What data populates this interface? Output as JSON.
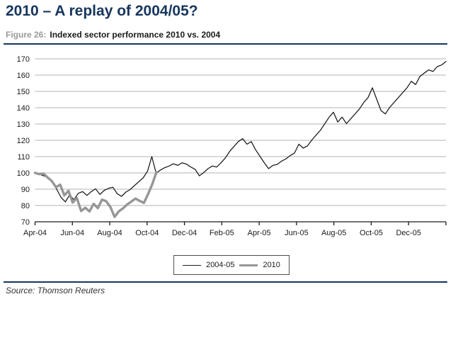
{
  "page": {
    "title": "2010 – A replay of 2004/05?",
    "accent_color": "#17365D"
  },
  "figure": {
    "label": "Figure 26:",
    "title": "Indexed sector performance 2010 vs. 2004"
  },
  "footer": {
    "source": "Source: Thomson Reuters"
  },
  "chart_data": {
    "type": "line",
    "title": "Indexed sector performance 2010 vs. 2004",
    "xlabel": "",
    "ylabel": "",
    "x_unit": "months since April of each series start year",
    "xlim": [
      0,
      22
    ],
    "ylim": [
      70,
      170
    ],
    "y_tick_step": 10,
    "y_tick_labels": [
      "70",
      "80",
      "90",
      "100",
      "110",
      "120",
      "130",
      "140",
      "150",
      "160",
      "170"
    ],
    "grid": "horizontal",
    "grid_color": "#b3b3b3",
    "axis_color": "#1a1a1a",
    "legend_position": "bottom-center",
    "x_ticks": [
      {
        "m": 0,
        "label": "Apr-04"
      },
      {
        "m": 2,
        "label": "Jun-04"
      },
      {
        "m": 4,
        "label": "Aug-04"
      },
      {
        "m": 6,
        "label": "Oct-04"
      },
      {
        "m": 8,
        "label": "Dec-04"
      },
      {
        "m": 10,
        "label": "Feb-05"
      },
      {
        "m": 12,
        "label": "Apr-05"
      },
      {
        "m": 14,
        "label": "Jun-05"
      },
      {
        "m": 16,
        "label": "Aug-05"
      },
      {
        "m": 18,
        "label": "Oct-05"
      },
      {
        "m": 20,
        "label": "Dec-05"
      },
      {
        "m": 22,
        "label": ""
      }
    ],
    "series": [
      {
        "name": "2004-05",
        "color": "#1f1f1f",
        "stroke_width": 1.3,
        "x_start": 0,
        "x_step": 0.23158,
        "values": [
          100,
          99.3,
          98.2,
          97.3,
          94.5,
          90,
          85,
          82.2,
          86.5,
          83.5,
          87.5,
          88.5,
          86.2,
          88.5,
          90.2,
          86.8,
          89.3,
          90.5,
          91.2,
          87.2,
          85.6,
          88.2,
          89.8,
          92.2,
          94.6,
          97,
          101,
          110,
          99.8,
          101.8,
          103.2,
          104.2,
          105.6,
          104.6,
          106.2,
          105.4,
          103.6,
          102.2,
          98.2,
          100.2,
          102.6,
          104.2,
          103.6,
          106.2,
          109.2,
          113.2,
          116.2,
          119.2,
          121,
          117.6,
          119.2,
          114.2,
          110.2,
          106.2,
          102.6,
          104.6,
          105.2,
          107.2,
          108.6,
          110.6,
          112.2,
          117.6,
          115.2,
          116.6,
          120.2,
          123.2,
          126.2,
          130.2,
          134.2,
          137.2,
          131.2,
          134.2,
          130.2,
          133.2,
          136.2,
          139.2,
          143.2,
          146.2,
          152.2,
          145.2,
          138.2,
          136.2,
          140.2,
          143.2,
          146.2,
          149.2,
          152.2,
          156.2,
          154.2,
          159.2,
          161.2,
          163.2,
          162.2,
          165.2,
          166.2,
          168.4
        ]
      },
      {
        "name": "2010",
        "color": "#969696",
        "stroke_width": 3.4,
        "x_start": 0,
        "x_step": 0.22414,
        "values": [
          100,
          99.2,
          99.6,
          97.2,
          95,
          91.2,
          92.8,
          86.2,
          89,
          81.8,
          84.6,
          76.6,
          78.6,
          76.4,
          81,
          78.4,
          83.6,
          82.6,
          79,
          73,
          76.4,
          78.2,
          80.6,
          82.4,
          84.2,
          82.8,
          81.6,
          87,
          93,
          100.5
        ]
      }
    ]
  }
}
